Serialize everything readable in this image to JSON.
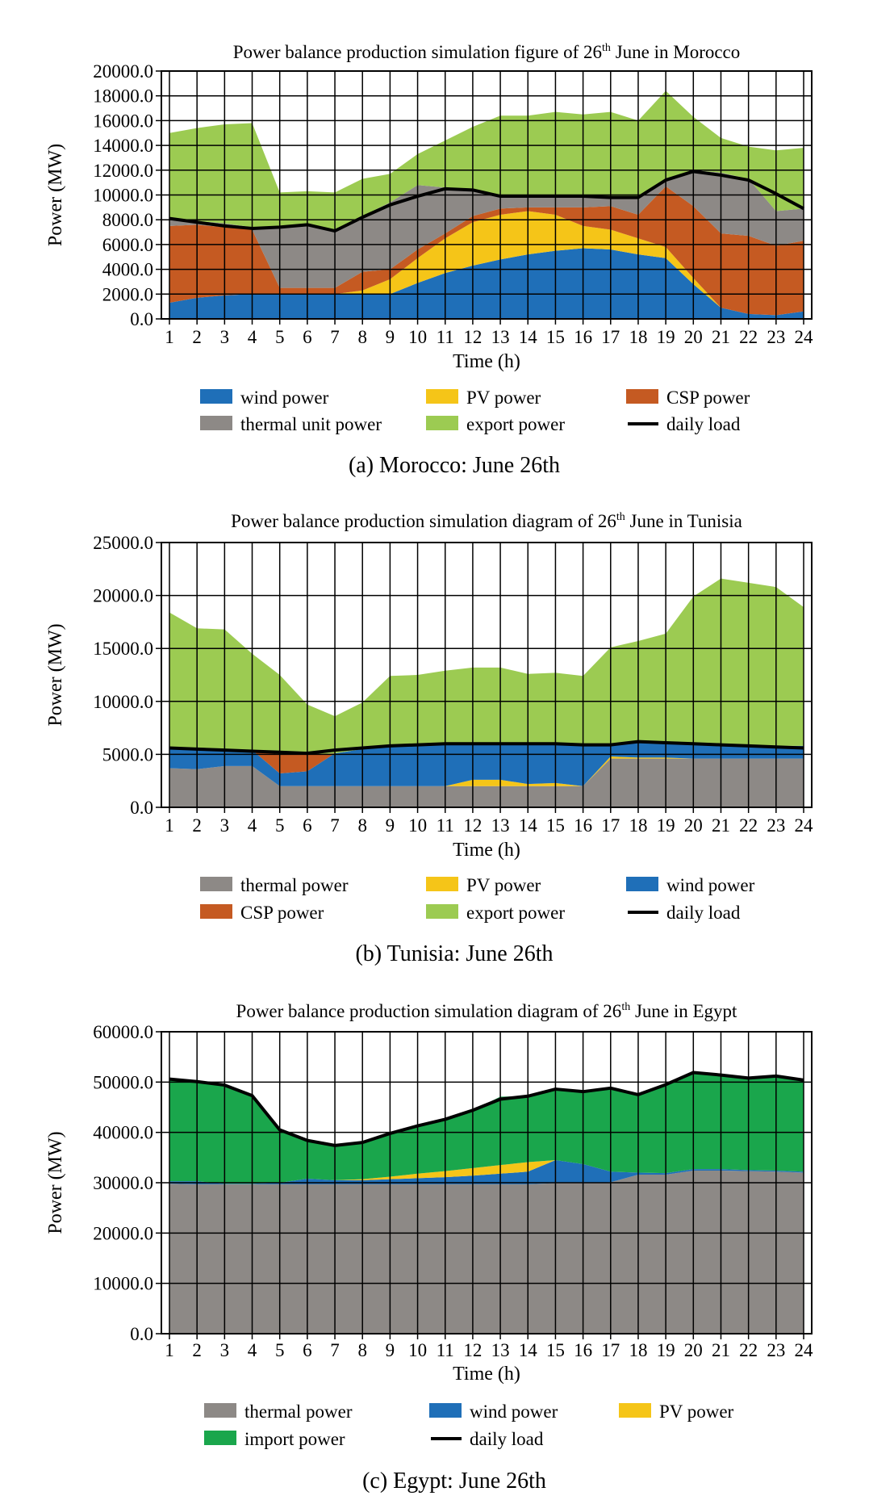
{
  "chart_data": [
    {
      "type": "area",
      "title_pre": "Power balance production simulation figure of 26",
      "title_sup": "th",
      "title_post": " June in Morocco",
      "xlabel": "Time (h)",
      "ylabel": "Power (MW)",
      "x": [
        1,
        2,
        3,
        4,
        5,
        6,
        7,
        8,
        9,
        10,
        11,
        12,
        13,
        14,
        15,
        16,
        17,
        18,
        19,
        20,
        21,
        22,
        23,
        24
      ],
      "ylim": [
        0,
        20000
      ],
      "ytick_step": 2000,
      "ytick_labels": [
        "0.0",
        "2000.0",
        "4000.0",
        "6000.0",
        "8000.0",
        "10000.0",
        "12000.0",
        "14000.0",
        "16000.0",
        "18000.0",
        "20000.0"
      ],
      "grid": true,
      "series": [
        {
          "name": "wind power",
          "color": "#1f6fb8",
          "values": [
            1300,
            1700,
            1900,
            2000,
            2000,
            2000,
            2000,
            2000,
            2000,
            2900,
            3700,
            4300,
            4800,
            5200,
            5500,
            5700,
            5600,
            5200,
            4900,
            2800,
            900,
            400,
            300,
            600
          ]
        },
        {
          "name": "PV power",
          "color": "#f5c518",
          "values": [
            0,
            0,
            0,
            0,
            0,
            0,
            0,
            300,
            1200,
            2000,
            2800,
            3500,
            3600,
            3500,
            2900,
            1800,
            1600,
            1300,
            900,
            500,
            0,
            0,
            0,
            0
          ]
        },
        {
          "name": "CSP power",
          "color": "#c55a22",
          "values": [
            6200,
            5900,
            5500,
            5200,
            500,
            500,
            500,
            1500,
            800,
            700,
            400,
            500,
            500,
            300,
            600,
            1500,
            1900,
            1900,
            4900,
            5800,
            6000,
            6300,
            5600,
            5700
          ]
        },
        {
          "name": "thermal unit power",
          "color": "#8d8986",
          "values": [
            600,
            300,
            300,
            200,
            5000,
            5200,
            4500,
            4500,
            5400,
            5200,
            3700,
            2000,
            1000,
            900,
            800,
            800,
            600,
            1400,
            500,
            2900,
            4900,
            4600,
            2800,
            2600
          ]
        },
        {
          "name": "export power",
          "color": "#9ccb52",
          "values": [
            6900,
            7500,
            8000,
            8400,
            2700,
            2600,
            3200,
            3000,
            2300,
            2500,
            3800,
            5200,
            6500,
            6500,
            6900,
            6700,
            7000,
            6200,
            7200,
            4300,
            2800,
            2600,
            4900,
            4900
          ]
        }
      ],
      "line": {
        "name": "daily load",
        "color": "#000000",
        "values": [
          8100,
          7800,
          7500,
          7300,
          7400,
          7600,
          7100,
          8200,
          9200,
          9900,
          10500,
          10400,
          9900,
          9900,
          9900,
          9900,
          9800,
          9800,
          11200,
          11900,
          11600,
          11200,
          10100,
          8900
        ]
      },
      "legend": {
        "order": [
          "wind power",
          "PV power",
          "CSP power",
          "thermal unit power",
          "export power",
          "daily load"
        ]
      },
      "caption": "(a) Morocco: June 26th"
    },
    {
      "type": "area",
      "title_pre": "Power balance production simulation diagram of 26",
      "title_sup": "th",
      "title_post": " June in Tunisia",
      "xlabel": "Time (h)",
      "ylabel": "Power (MW)",
      "x": [
        1,
        2,
        3,
        4,
        5,
        6,
        7,
        8,
        9,
        10,
        11,
        12,
        13,
        14,
        15,
        16,
        17,
        18,
        19,
        20,
        21,
        22,
        23,
        24
      ],
      "ylim": [
        0,
        25000
      ],
      "ytick_step": 5000,
      "ytick_labels": [
        "0.0",
        "5000.0",
        "10000.0",
        "15000.0",
        "20000.0",
        "25000.0"
      ],
      "grid": true,
      "series": [
        {
          "name": "thermal power",
          "color": "#8d8986",
          "values": [
            3700,
            3600,
            3900,
            3900,
            2000,
            2000,
            2000,
            2000,
            2000,
            2000,
            2000,
            2000,
            2000,
            2000,
            2000,
            2000,
            4600,
            4600,
            4600,
            4600,
            4600,
            4600,
            4600,
            4600
          ]
        },
        {
          "name": "PV power",
          "color": "#f5c518",
          "values": [
            0,
            0,
            0,
            0,
            0,
            0,
            0,
            0,
            0,
            0,
            0,
            600,
            600,
            200,
            300,
            0,
            200,
            100,
            100,
            0,
            0,
            0,
            0,
            0
          ]
        },
        {
          "name": "wind power",
          "color": "#1f6fb8",
          "values": [
            1800,
            1900,
            1500,
            1500,
            1200,
            1400,
            3100,
            3500,
            3800,
            3900,
            4000,
            3300,
            3400,
            3800,
            3700,
            3800,
            1000,
            1600,
            1500,
            1400,
            1400,
            1300,
            1200,
            1200
          ]
        },
        {
          "name": "CSP power",
          "color": "#c55a22",
          "values": [
            0,
            0,
            0,
            0,
            1800,
            1600,
            0,
            0,
            0,
            0,
            0,
            0,
            0,
            0,
            0,
            0,
            0,
            0,
            0,
            0,
            0,
            0,
            0,
            0
          ]
        },
        {
          "name": "export power",
          "color": "#9ccb52",
          "values": [
            12900,
            11400,
            11400,
            9100,
            7500,
            4700,
            3500,
            4400,
            6600,
            6600,
            6900,
            7300,
            7200,
            6600,
            6700,
            6600,
            9300,
            9400,
            10200,
            13900,
            15600,
            15300,
            15000,
            13100
          ]
        }
      ],
      "line": {
        "name": "daily load",
        "color": "#000000",
        "values": [
          5600,
          5500,
          5400,
          5300,
          5200,
          5100,
          5400,
          5600,
          5800,
          5900,
          6000,
          6000,
          6000,
          6000,
          6000,
          5900,
          5900,
          6200,
          6100,
          6000,
          5900,
          5800,
          5700,
          5600
        ]
      },
      "legend": {
        "order": [
          "thermal power",
          "PV power",
          "wind power",
          "CSP power",
          "export power",
          "daily load"
        ]
      },
      "caption": "(b) Tunisia: June 26th"
    },
    {
      "type": "area",
      "title_pre": "Power balance production simulation diagram of 26",
      "title_sup": "th",
      "title_post": " June in Egypt",
      "xlabel": "Time (h)",
      "ylabel": "Power (MW)",
      "x": [
        1,
        2,
        3,
        4,
        5,
        6,
        7,
        8,
        9,
        10,
        11,
        12,
        13,
        14,
        15,
        16,
        17,
        18,
        19,
        20,
        21,
        22,
        23,
        24
      ],
      "ylim": [
        0,
        60000
      ],
      "ytick_step": 10000,
      "ytick_labels": [
        "0.0",
        "10000.0",
        "20000.0",
        "30000.0",
        "40000.0",
        "50000.0",
        "60000.0"
      ],
      "grid": true,
      "series": [
        {
          "name": "thermal power",
          "color": "#8d8986",
          "values": [
            29800,
            29700,
            29700,
            29700,
            29700,
            29700,
            29700,
            29700,
            29700,
            29700,
            29700,
            29700,
            29700,
            29700,
            29900,
            30000,
            30100,
            31600,
            31600,
            32400,
            32400,
            32300,
            32200,
            32000
          ]
        },
        {
          "name": "wind power",
          "color": "#1f6fb8",
          "values": [
            500,
            600,
            100,
            100,
            300,
            1100,
            800,
            800,
            1000,
            1200,
            1400,
            1700,
            2100,
            2500,
            4600,
            3700,
            2100,
            400,
            300,
            300,
            300,
            200,
            200,
            200
          ]
        },
        {
          "name": "PV power",
          "color": "#f5c518",
          "values": [
            0,
            0,
            0,
            0,
            0,
            0,
            0,
            200,
            500,
            900,
            1200,
            1500,
            1700,
            1900,
            0,
            0,
            0,
            0,
            0,
            0,
            0,
            0,
            0,
            0
          ]
        },
        {
          "name": "import power",
          "color": "#1aa64c",
          "values": [
            20300,
            19800,
            19500,
            17500,
            10500,
            7600,
            6900,
            7300,
            8600,
            9500,
            10300,
            11500,
            13600,
            13100,
            14100,
            14400,
            16600,
            15500,
            17600,
            19200,
            18700,
            18300,
            18800,
            18200
          ]
        }
      ],
      "line": {
        "name": "daily load",
        "color": "#000000",
        "values": [
          50600,
          50100,
          49400,
          47300,
          40500,
          38400,
          37400,
          38000,
          39800,
          41300,
          42600,
          44400,
          46600,
          47200,
          48600,
          48100,
          48800,
          47500,
          49500,
          51900,
          51400,
          50800,
          51200,
          50400
        ]
      },
      "legend": {
        "order": [
          "thermal power",
          "wind power",
          "PV power",
          "import power",
          "daily load"
        ]
      },
      "caption": "(c) Egypt: June 26th"
    }
  ]
}
